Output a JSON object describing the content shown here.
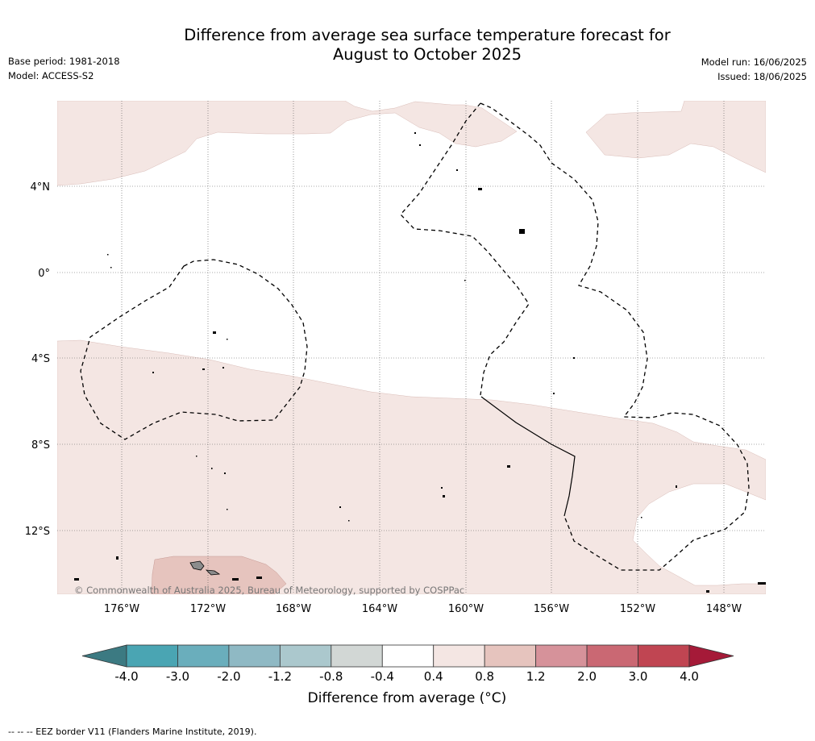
{
  "header": {
    "title_line1": "Difference from average sea surface temperature forecast for",
    "title_line2": "August to October 2025",
    "base_period": "Base period: 1981-2018",
    "model": "Model: ACCESS-S2",
    "model_run": "Model run: 16/06/2025",
    "issued": "Issued: 18/06/2025"
  },
  "map": {
    "lat_labels": [
      "4°N",
      "0°",
      "4°S",
      "8°S",
      "12°S"
    ],
    "lon_labels": [
      "176°W",
      "172°W",
      "168°W",
      "164°W",
      "160°W",
      "156°W",
      "152°W",
      "148°W"
    ],
    "copyright": "© Commonwealth of Australia 2025, Bureau of Meteorology, supported by COSPPac",
    "colors": {
      "anomaly_0_4_0_8": "#f4e6e3",
      "anomaly_0_8_1_2": "#e6c4be",
      "land": "#8c8c8c",
      "eez_border": "#000000"
    }
  },
  "colorbar": {
    "label": "Difference from average (°C)",
    "ticks": [
      "-4.0",
      "-3.0",
      "-2.0",
      "-1.2",
      "-0.8",
      "-0.4",
      "0.4",
      "0.8",
      "1.2",
      "2.0",
      "3.0",
      "4.0"
    ],
    "colors": [
      "#3c7a82",
      "#4aa5b3",
      "#6aaebc",
      "#8fb9c4",
      "#abc8cd",
      "#d2d7d5",
      "#ffffff",
      "#f4e6e3",
      "#e6c4be",
      "#d6929a",
      "#ca6873",
      "#c04552",
      "#a51a38"
    ]
  },
  "footnote": "--  --  -- EEZ border V11 (Flanders Marine Institute, 2019)."
}
